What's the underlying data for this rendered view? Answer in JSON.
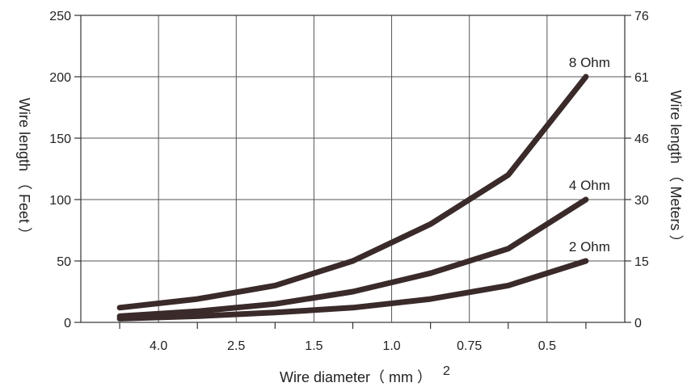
{
  "chart_data": {
    "type": "line",
    "xlabel": "Wire diameter（ mm ）",
    "xlabel_superscript": "2",
    "ylabel_left": "Wire length （ Feet ）",
    "ylabel_right": "Wire length （ Meters ）",
    "categories": [
      "4.0",
      "2.5",
      "1.5",
      "1.0",
      "0.75",
      "0.5"
    ],
    "ylim": [
      0,
      250
    ],
    "yticks_left": [
      "0",
      "50",
      "100",
      "150",
      "200",
      "250"
    ],
    "yticks_right": [
      "0",
      "15",
      "30",
      "46",
      "61",
      "76"
    ],
    "grid": true,
    "line_color": "#3a2a2a",
    "series": [
      {
        "name": "8 Ohm",
        "points": [
          {
            "x": -0.5,
            "y": 12
          },
          {
            "x": 0.5,
            "y": 19
          },
          {
            "x": 1.5,
            "y": 30
          },
          {
            "x": 2.5,
            "y": 50
          },
          {
            "x": 3.5,
            "y": 80
          },
          {
            "x": 4.5,
            "y": 120
          },
          {
            "x": 5.5,
            "y": 200
          }
        ]
      },
      {
        "name": "4 Ohm",
        "points": [
          {
            "x": -0.5,
            "y": 5
          },
          {
            "x": 0.5,
            "y": 9
          },
          {
            "x": 1.5,
            "y": 15
          },
          {
            "x": 2.5,
            "y": 25
          },
          {
            "x": 3.5,
            "y": 40
          },
          {
            "x": 4.5,
            "y": 60
          },
          {
            "x": 5.5,
            "y": 100
          }
        ]
      },
      {
        "name": "2 Ohm",
        "points": [
          {
            "x": -0.5,
            "y": 3
          },
          {
            "x": 0.5,
            "y": 5
          },
          {
            "x": 1.5,
            "y": 8
          },
          {
            "x": 2.5,
            "y": 12
          },
          {
            "x": 3.5,
            "y": 19
          },
          {
            "x": 4.5,
            "y": 30
          },
          {
            "x": 5.5,
            "y": 50
          }
        ]
      }
    ]
  }
}
